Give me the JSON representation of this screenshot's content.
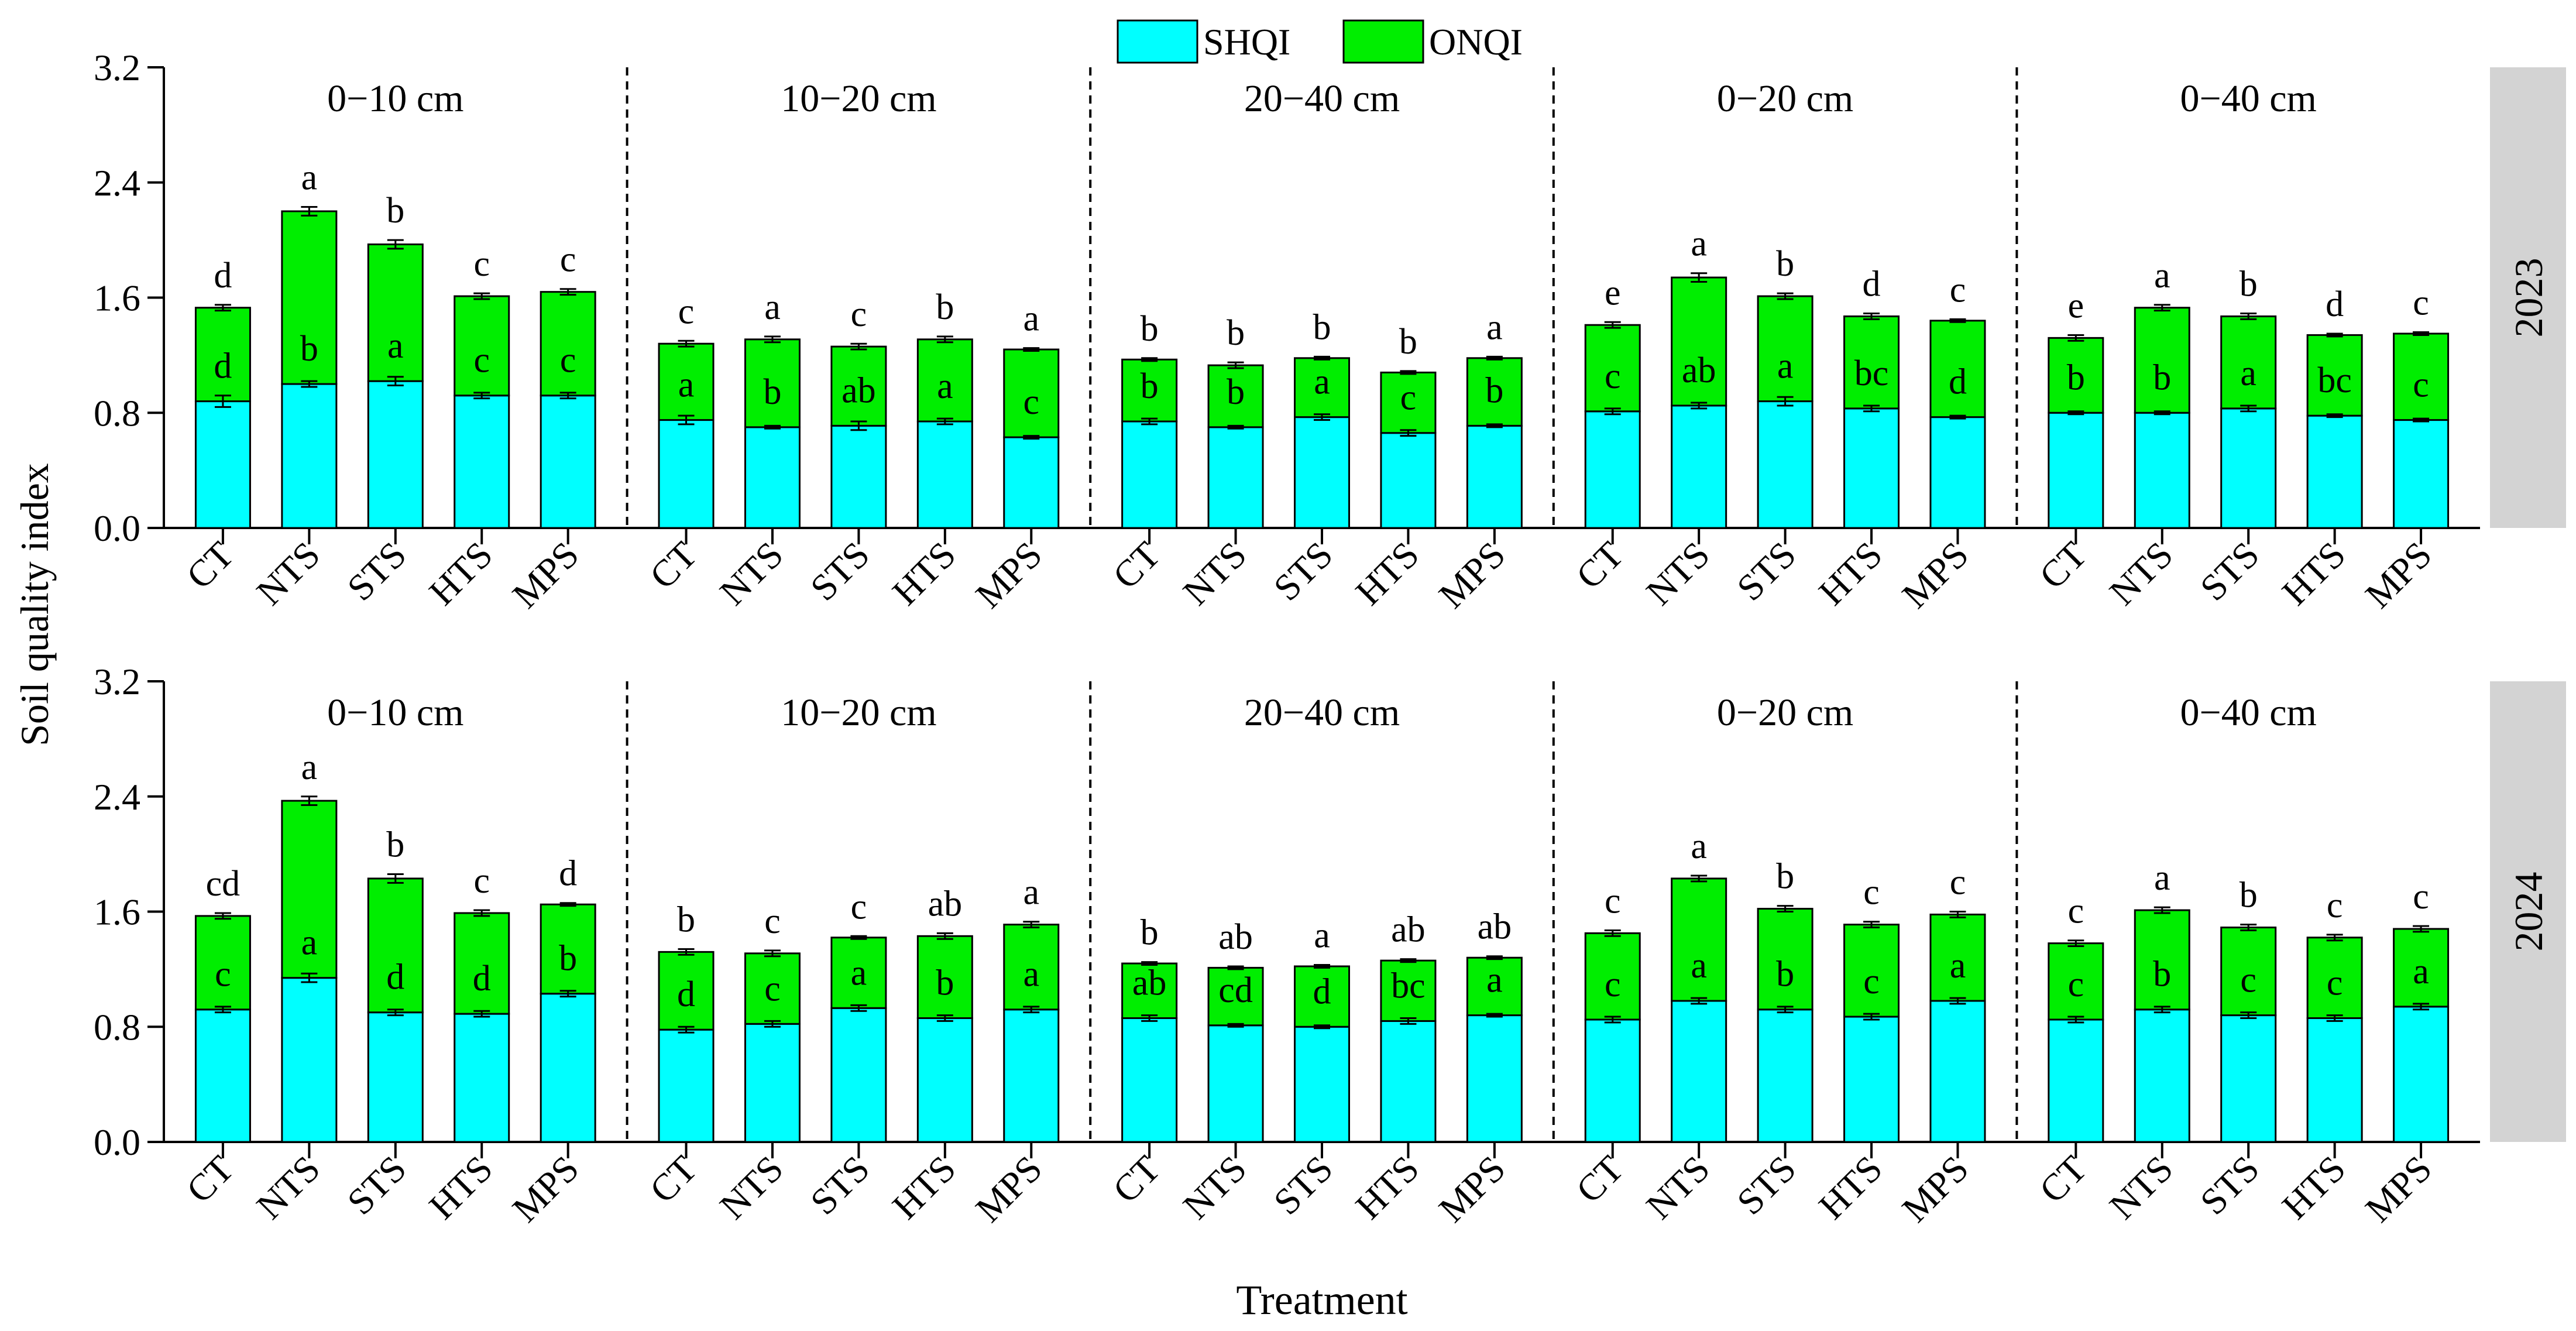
{
  "chart_data": {
    "type": "bar",
    "stacked": true,
    "xlabel": "Treatment",
    "ylabel": "Soil quality index",
    "ylim": [
      0,
      3.2
    ],
    "yticks": [
      "0.0",
      "0.8",
      "1.6",
      "2.4",
      "3.2"
    ],
    "categories": [
      "CT",
      "NTS",
      "STS",
      "HTS",
      "MPS"
    ],
    "depths": [
      "0−10 cm",
      "10−20 cm",
      "20−40 cm",
      "0−20 cm",
      "0−40 cm"
    ],
    "legend": {
      "position": "top-center",
      "entries": [
        "SHQI",
        "ONQI"
      ]
    },
    "colors": {
      "SHQI": "#00ffff",
      "ONQI": "#00ee00",
      "strip": "#d3d3d3"
    },
    "rows": [
      {
        "year": "2023",
        "panels": [
          {
            "shqi": [
              0.88,
              1.0,
              1.02,
              0.92,
              0.92
            ],
            "total": [
              1.53,
              2.2,
              1.97,
              1.61,
              1.64
            ],
            "shqi_err": [
              0.04,
              0.02,
              0.03,
              0.02,
              0.02
            ],
            "total_err": [
              0.02,
              0.03,
              0.03,
              0.02,
              0.02
            ],
            "shqi_letters": [
              "d",
              "b",
              "a",
              "c",
              "c"
            ],
            "total_letters": [
              "d",
              "a",
              "b",
              "c",
              "c"
            ]
          },
          {
            "shqi": [
              0.75,
              0.7,
              0.71,
              0.74,
              0.63
            ],
            "total": [
              1.28,
              1.31,
              1.26,
              1.31,
              1.24
            ],
            "shqi_err": [
              0.03,
              0.01,
              0.03,
              0.02,
              0.01
            ],
            "total_err": [
              0.02,
              0.02,
              0.02,
              0.02,
              0.01
            ],
            "shqi_letters": [
              "a",
              "b",
              "ab",
              "a",
              "c"
            ],
            "total_letters": [
              "c",
              "a",
              "c",
              "b",
              "a"
            ]
          },
          {
            "shqi": [
              0.74,
              0.7,
              0.77,
              0.66,
              0.71
            ],
            "total": [
              1.17,
              1.13,
              1.18,
              1.08,
              1.18
            ],
            "shqi_err": [
              0.02,
              0.01,
              0.02,
              0.02,
              0.01
            ],
            "total_err": [
              0.01,
              0.02,
              0.01,
              0.01,
              0.01
            ],
            "shqi_letters": [
              "b",
              "b",
              "a",
              "c",
              "b"
            ],
            "total_letters": [
              "b",
              "b",
              "b",
              "b",
              "a"
            ]
          },
          {
            "shqi": [
              0.81,
              0.85,
              0.88,
              0.83,
              0.77
            ],
            "total": [
              1.41,
              1.74,
              1.61,
              1.47,
              1.44
            ],
            "shqi_err": [
              0.02,
              0.02,
              0.03,
              0.02,
              0.01
            ],
            "total_err": [
              0.02,
              0.03,
              0.02,
              0.02,
              0.01
            ],
            "shqi_letters": [
              "c",
              "ab",
              "a",
              "bc",
              "d"
            ],
            "total_letters": [
              "e",
              "a",
              "b",
              "d",
              "c"
            ]
          },
          {
            "shqi": [
              0.8,
              0.8,
              0.83,
              0.78,
              0.75
            ],
            "total": [
              1.32,
              1.53,
              1.47,
              1.34,
              1.35
            ],
            "shqi_err": [
              0.01,
              0.01,
              0.02,
              0.01,
              0.01
            ],
            "total_err": [
              0.02,
              0.02,
              0.02,
              0.01,
              0.01
            ],
            "shqi_letters": [
              "b",
              "b",
              "a",
              "bc",
              "c"
            ],
            "total_letters": [
              "e",
              "a",
              "b",
              "d",
              "c"
            ]
          }
        ]
      },
      {
        "year": "2024",
        "panels": [
          {
            "shqi": [
              0.92,
              1.14,
              0.9,
              0.89,
              1.03
            ],
            "total": [
              1.57,
              2.37,
              1.83,
              1.59,
              1.65
            ],
            "shqi_err": [
              0.02,
              0.03,
              0.02,
              0.02,
              0.02
            ],
            "total_err": [
              0.02,
              0.03,
              0.03,
              0.02,
              0.01
            ],
            "shqi_letters": [
              "c",
              "a",
              "d",
              "d",
              "b"
            ],
            "total_letters": [
              "cd",
              "a",
              "b",
              "c",
              "d"
            ]
          },
          {
            "shqi": [
              0.78,
              0.82,
              0.93,
              0.86,
              0.92
            ],
            "total": [
              1.32,
              1.31,
              1.42,
              1.43,
              1.51
            ],
            "shqi_err": [
              0.02,
              0.02,
              0.02,
              0.02,
              0.02
            ],
            "total_err": [
              0.02,
              0.02,
              0.01,
              0.02,
              0.02
            ],
            "shqi_letters": [
              "d",
              "c",
              "a",
              "b",
              "a"
            ],
            "total_letters": [
              "b",
              "c",
              "c",
              "ab",
              "a"
            ]
          },
          {
            "shqi": [
              0.86,
              0.81,
              0.8,
              0.84,
              0.88
            ],
            "total": [
              1.24,
              1.21,
              1.22,
              1.26,
              1.28
            ],
            "shqi_err": [
              0.02,
              0.01,
              0.01,
              0.02,
              0.01
            ],
            "total_err": [
              0.01,
              0.01,
              0.01,
              0.01,
              0.01
            ],
            "shqi_letters": [
              "ab",
              "cd",
              "d",
              "bc",
              "a"
            ],
            "total_letters": [
              "b",
              "ab",
              "a",
              "ab",
              "ab"
            ]
          },
          {
            "shqi": [
              0.85,
              0.98,
              0.92,
              0.87,
              0.98
            ],
            "total": [
              1.45,
              1.83,
              1.62,
              1.51,
              1.58
            ],
            "shqi_err": [
              0.02,
              0.02,
              0.02,
              0.02,
              0.02
            ],
            "total_err": [
              0.02,
              0.02,
              0.02,
              0.02,
              0.02
            ],
            "shqi_letters": [
              "c",
              "a",
              "b",
              "c",
              "a"
            ],
            "total_letters": [
              "c",
              "a",
              "b",
              "c",
              "c"
            ]
          },
          {
            "shqi": [
              0.85,
              0.92,
              0.88,
              0.86,
              0.94
            ],
            "total": [
              1.38,
              1.61,
              1.49,
              1.42,
              1.48
            ],
            "shqi_err": [
              0.02,
              0.02,
              0.02,
              0.02,
              0.02
            ],
            "total_err": [
              0.02,
              0.02,
              0.02,
              0.02,
              0.02
            ],
            "shqi_letters": [
              "c",
              "b",
              "c",
              "c",
              "a"
            ],
            "total_letters": [
              "c",
              "a",
              "b",
              "c",
              "c"
            ]
          }
        ]
      }
    ]
  }
}
